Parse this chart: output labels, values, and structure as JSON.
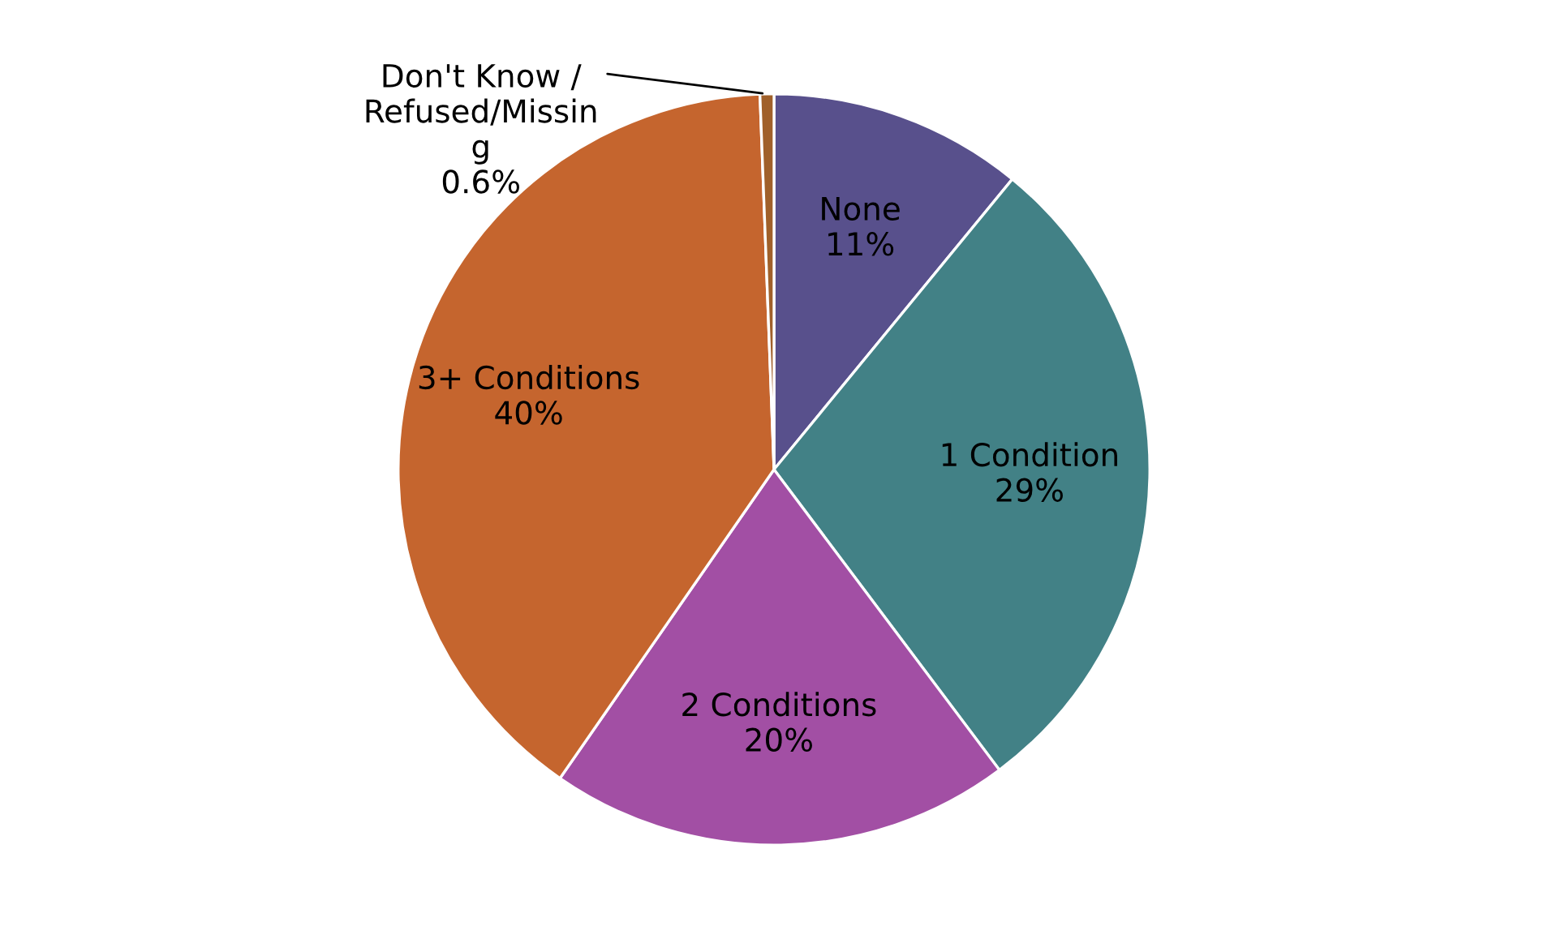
{
  "chart_data": {
    "type": "pie",
    "categories": [
      "None",
      "1 Condition",
      "2 Conditions",
      "3+ Conditions",
      "Don't Know /\nRefused/Missin\ng"
    ],
    "values": [
      11,
      29,
      20,
      40,
      0.6
    ],
    "colors": [
      "#58508c",
      "#428186",
      "#a24fa4",
      "#c5652e",
      "#a0602a"
    ],
    "value_labels": [
      "11%",
      "29%",
      "20%",
      "40%",
      "0.6%"
    ],
    "legend": false
  }
}
